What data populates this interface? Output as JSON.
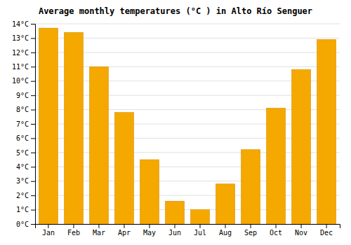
{
  "chart_data": {
    "type": "bar",
    "title": "Average monthly temperatures (°C ) in Alto Río Senguer",
    "categories": [
      "Jan",
      "Feb",
      "Mar",
      "Apr",
      "May",
      "Jun",
      "Jul",
      "Aug",
      "Sep",
      "Oct",
      "Nov",
      "Dec"
    ],
    "values": [
      13.7,
      13.4,
      11.0,
      7.8,
      4.5,
      1.6,
      1.0,
      2.8,
      5.2,
      8.1,
      10.8,
      12.9
    ],
    "color": "#F5A800",
    "ylim": [
      0,
      14
    ],
    "yticks": [
      {
        "value": 0,
        "label": "0°C"
      },
      {
        "value": 1,
        "label": "1°C"
      },
      {
        "value": 2,
        "label": "2°C"
      },
      {
        "value": 3,
        "label": "3°C"
      },
      {
        "value": 4,
        "label": "4°C"
      },
      {
        "value": 5,
        "label": "5°C"
      },
      {
        "value": 6,
        "label": "6°C"
      },
      {
        "value": 7,
        "label": "7°C"
      },
      {
        "value": 8,
        "label": "8°C"
      },
      {
        "value": 9,
        "label": "9°C"
      },
      {
        "value": 10,
        "label": "10°C"
      },
      {
        "value": 11,
        "label": "11°C"
      },
      {
        "value": 12,
        "label": "12°C"
      },
      {
        "value": 13,
        "label": "13°C"
      },
      {
        "value": 14,
        "label": "14°C"
      }
    ],
    "grid": true
  }
}
